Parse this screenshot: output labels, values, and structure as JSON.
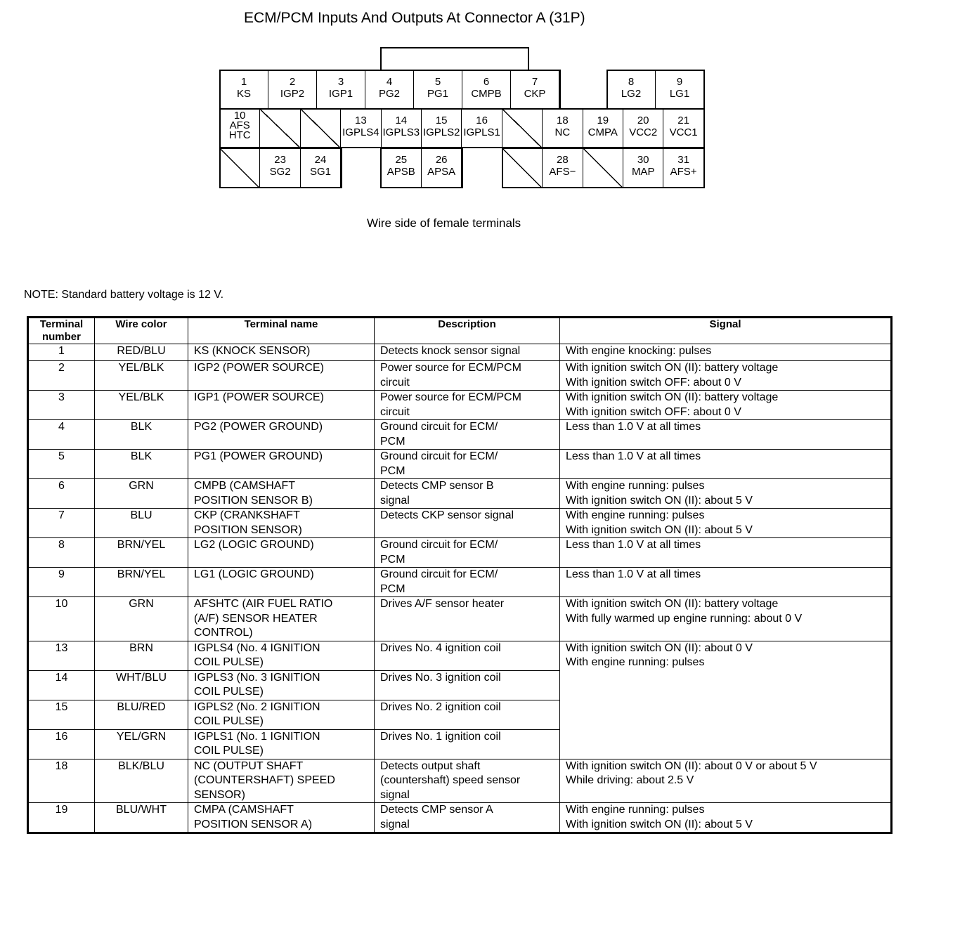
{
  "title": "ECM/PCM Inputs And Outputs At Connector A (31P)",
  "connector": {
    "caption": "Wire side of female terminals",
    "cells": [
      {
        "label": "1\nKS"
      },
      {
        "label": "2\nIGP2"
      },
      {
        "label": "3\nIGP1"
      },
      {
        "label": "4\nPG2"
      },
      {
        "label": "5\nPG1"
      },
      {
        "label": "6\nCMPB"
      },
      {
        "label": "7\nCKP"
      },
      {
        "label": "8\nLG2"
      },
      {
        "label": "9\nLG1"
      },
      {
        "label": "10\nAFS\nHTC"
      },
      {
        "label": ""
      },
      {
        "label": ""
      },
      {
        "label": "13\nIGPLS4"
      },
      {
        "label": "14\nIGPLS3"
      },
      {
        "label": "15\nIGPLS2"
      },
      {
        "label": "16\nIGPLS1"
      },
      {
        "label": ""
      },
      {
        "label": "18\nNC"
      },
      {
        "label": "19\nCMPA"
      },
      {
        "label": "20\nVCC2"
      },
      {
        "label": "21\nVCC1"
      },
      {
        "label": ""
      },
      {
        "label": "23\nSG2"
      },
      {
        "label": "24\nSG1"
      },
      {
        "label": "25\nAPSB"
      },
      {
        "label": "26\nAPSA"
      },
      {
        "label": ""
      },
      {
        "label": "28\nAFS−"
      },
      {
        "label": ""
      },
      {
        "label": "30\nMAP"
      },
      {
        "label": "31\nAFS+"
      }
    ]
  },
  "note": "NOTE: Standard battery voltage is 12 V.",
  "table": {
    "headers": [
      "Terminal\nnumber",
      "Wire color",
      "Terminal name",
      "Description",
      "Signal"
    ],
    "rows": [
      {
        "terminal": "1",
        "wire": "RED/BLU",
        "name": "KS (KNOCK SENSOR)",
        "description": "Detects knock sensor signal",
        "signal": "With engine knocking: pulses"
      },
      {
        "terminal": "2",
        "wire": "YEL/BLK",
        "name": "IGP2 (POWER SOURCE)",
        "description": "Power source for ECM/PCM\ncircuit",
        "signal": "With ignition switch ON (II): battery voltage\nWith ignition switch OFF: about 0 V"
      },
      {
        "terminal": "3",
        "wire": "YEL/BLK",
        "name": "IGP1 (POWER SOURCE)",
        "description": "Power source for ECM/PCM\ncircuit",
        "signal": "With ignition switch ON (II): battery voltage\nWith ignition switch OFF: about 0 V"
      },
      {
        "terminal": "4",
        "wire": "BLK",
        "name": "PG2 (POWER GROUND)",
        "description": "Ground circuit for ECM/\nPCM",
        "signal": "Less than 1.0 V at all times"
      },
      {
        "terminal": "5",
        "wire": "BLK",
        "name": "PG1 (POWER GROUND)",
        "description": "Ground circuit for ECM/\nPCM",
        "signal": "Less than 1.0 V at all times"
      },
      {
        "terminal": "6",
        "wire": "GRN",
        "name": "CMPB (CAMSHAFT\nPOSITION SENSOR B)",
        "description": "Detects CMP sensor B\nsignal",
        "signal": "With engine running: pulses\nWith ignition switch ON (II): about 5 V"
      },
      {
        "terminal": "7",
        "wire": "BLU",
        "name": "CKP (CRANKSHAFT\nPOSITION SENSOR)",
        "description": "Detects CKP sensor signal",
        "signal": "With engine running: pulses\nWith ignition switch ON (II): about 5 V"
      },
      {
        "terminal": "8",
        "wire": "BRN/YEL",
        "name": "LG2 (LOGIC GROUND)",
        "description": "Ground circuit for ECM/\nPCM",
        "signal": "Less than 1.0 V at all times"
      },
      {
        "terminal": "9",
        "wire": "BRN/YEL",
        "name": "LG1 (LOGIC GROUND)",
        "description": "Ground circuit for ECM/\nPCM",
        "signal": "Less than 1.0 V at all times"
      },
      {
        "terminal": "10",
        "wire": "GRN",
        "name": "AFSHTC (AIR FUEL RATIO\n(A/F) SENSOR HEATER\nCONTROL)",
        "description": "Drives A/F sensor heater",
        "signal": "With ignition switch ON (II): battery voltage\nWith fully warmed up engine running: about 0 V"
      },
      {
        "terminal": "13",
        "wire": "BRN",
        "name": "IGPLS4 (No. 4 IGNITION\nCOIL PULSE)",
        "description": "Drives No. 4 ignition coil",
        "signal": "With ignition switch ON (II): about 0 V\nWith engine running: pulses"
      },
      {
        "terminal": "14",
        "wire": "WHT/BLU",
        "name": "IGPLS3 (No. 3 IGNITION\nCOIL PULSE)",
        "description": "Drives No. 3 ignition coil",
        "signal": null
      },
      {
        "terminal": "15",
        "wire": "BLU/RED",
        "name": "IGPLS2 (No. 2 IGNITION\nCOIL PULSE)",
        "description": "Drives No. 2 ignition coil",
        "signal": null
      },
      {
        "terminal": "16",
        "wire": "YEL/GRN",
        "name": "IGPLS1 (No. 1 IGNITION\nCOIL PULSE)",
        "description": "Drives No. 1 ignition coil",
        "signal": null
      },
      {
        "terminal": "18",
        "wire": "BLK/BLU",
        "name": "NC (OUTPUT SHAFT\n(COUNTERSHAFT) SPEED\nSENSOR)",
        "description": "Detects output shaft\n(countershaft) speed sensor\nsignal",
        "signal": "With ignition switch ON (II): about 0 V or about 5 V\nWhile driving: about 2.5 V"
      },
      {
        "terminal": "19",
        "wire": "BLU/WHT",
        "name": "CMPA (CAMSHAFT\nPOSITION SENSOR A)",
        "description": "Detects CMP sensor A\nsignal",
        "signal": "With engine running: pulses\nWith ignition switch ON (II): about 5 V"
      }
    ]
  }
}
